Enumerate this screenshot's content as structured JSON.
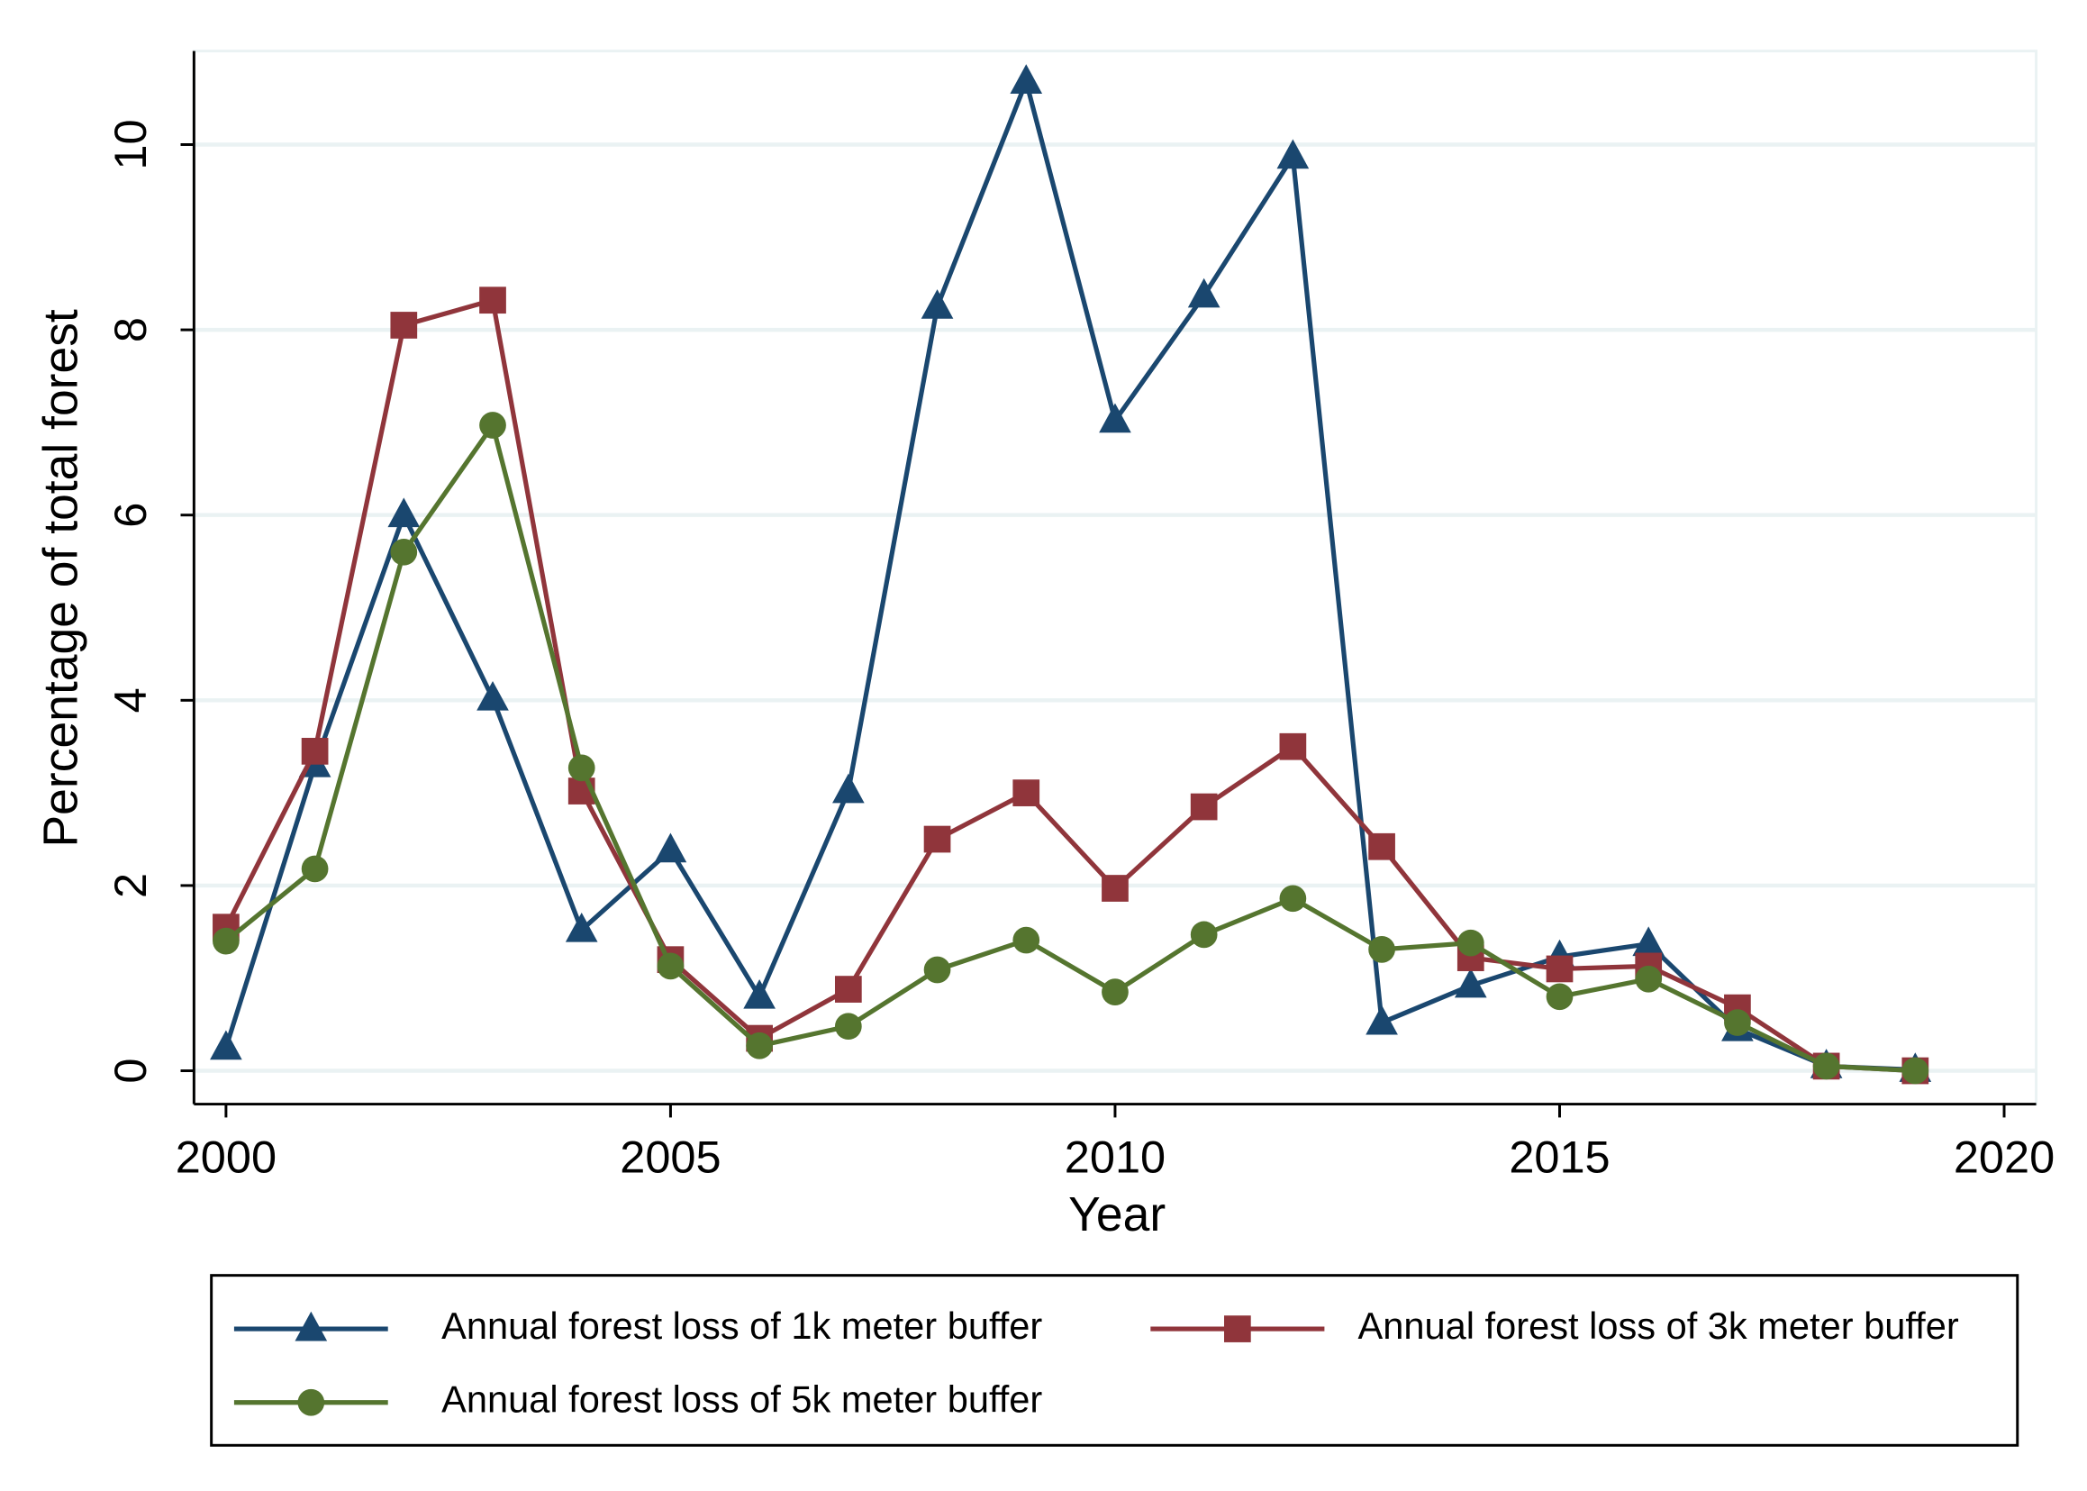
{
  "chart_data": {
    "type": "line",
    "xlabel": "Year",
    "ylabel": "Percentage of total forest",
    "x": [
      2000,
      2001,
      2002,
      2003,
      2004,
      2005,
      2006,
      2007,
      2008,
      2009,
      2010,
      2011,
      2012,
      2013,
      2014,
      2015,
      2016,
      2017,
      2018,
      2019
    ],
    "series": [
      {
        "name": "Annual forest loss of 1k meter buffer",
        "color": "#1a476f",
        "marker": "triangle",
        "values": [
          0.25,
          3.3,
          6.0,
          4.02,
          1.52,
          2.38,
          0.8,
          3.02,
          8.25,
          10.68,
          7.02,
          8.37,
          9.87,
          0.52,
          0.92,
          1.23,
          1.37,
          0.45,
          0.05,
          0.01
        ]
      },
      {
        "name": "Annual forest loss of 3k meter buffer",
        "color": "#90353b",
        "marker": "square",
        "values": [
          1.55,
          3.45,
          8.05,
          8.32,
          3.02,
          1.2,
          0.35,
          0.88,
          2.5,
          3.0,
          1.97,
          2.85,
          3.5,
          2.42,
          1.22,
          1.1,
          1.13,
          0.68,
          0.05,
          0.0
        ]
      },
      {
        "name": "Annual forest loss of 5k meter buffer",
        "color": "#55752f",
        "marker": "circle",
        "values": [
          1.4,
          2.18,
          5.6,
          6.97,
          3.27,
          1.13,
          0.27,
          0.48,
          1.09,
          1.41,
          0.85,
          1.47,
          1.86,
          1.31,
          1.38,
          0.8,
          0.99,
          0.52,
          0.05,
          0.0
        ]
      }
    ],
    "xlim": [
      1999.64,
      2020.36
    ],
    "xticks": [
      2000,
      2005,
      2010,
      2015,
      2020
    ],
    "ylim": [
      -0.36,
      11.01
    ],
    "yticks": [
      0,
      2,
      4,
      6,
      8,
      10
    ],
    "grid": true,
    "legend": "bottom"
  }
}
